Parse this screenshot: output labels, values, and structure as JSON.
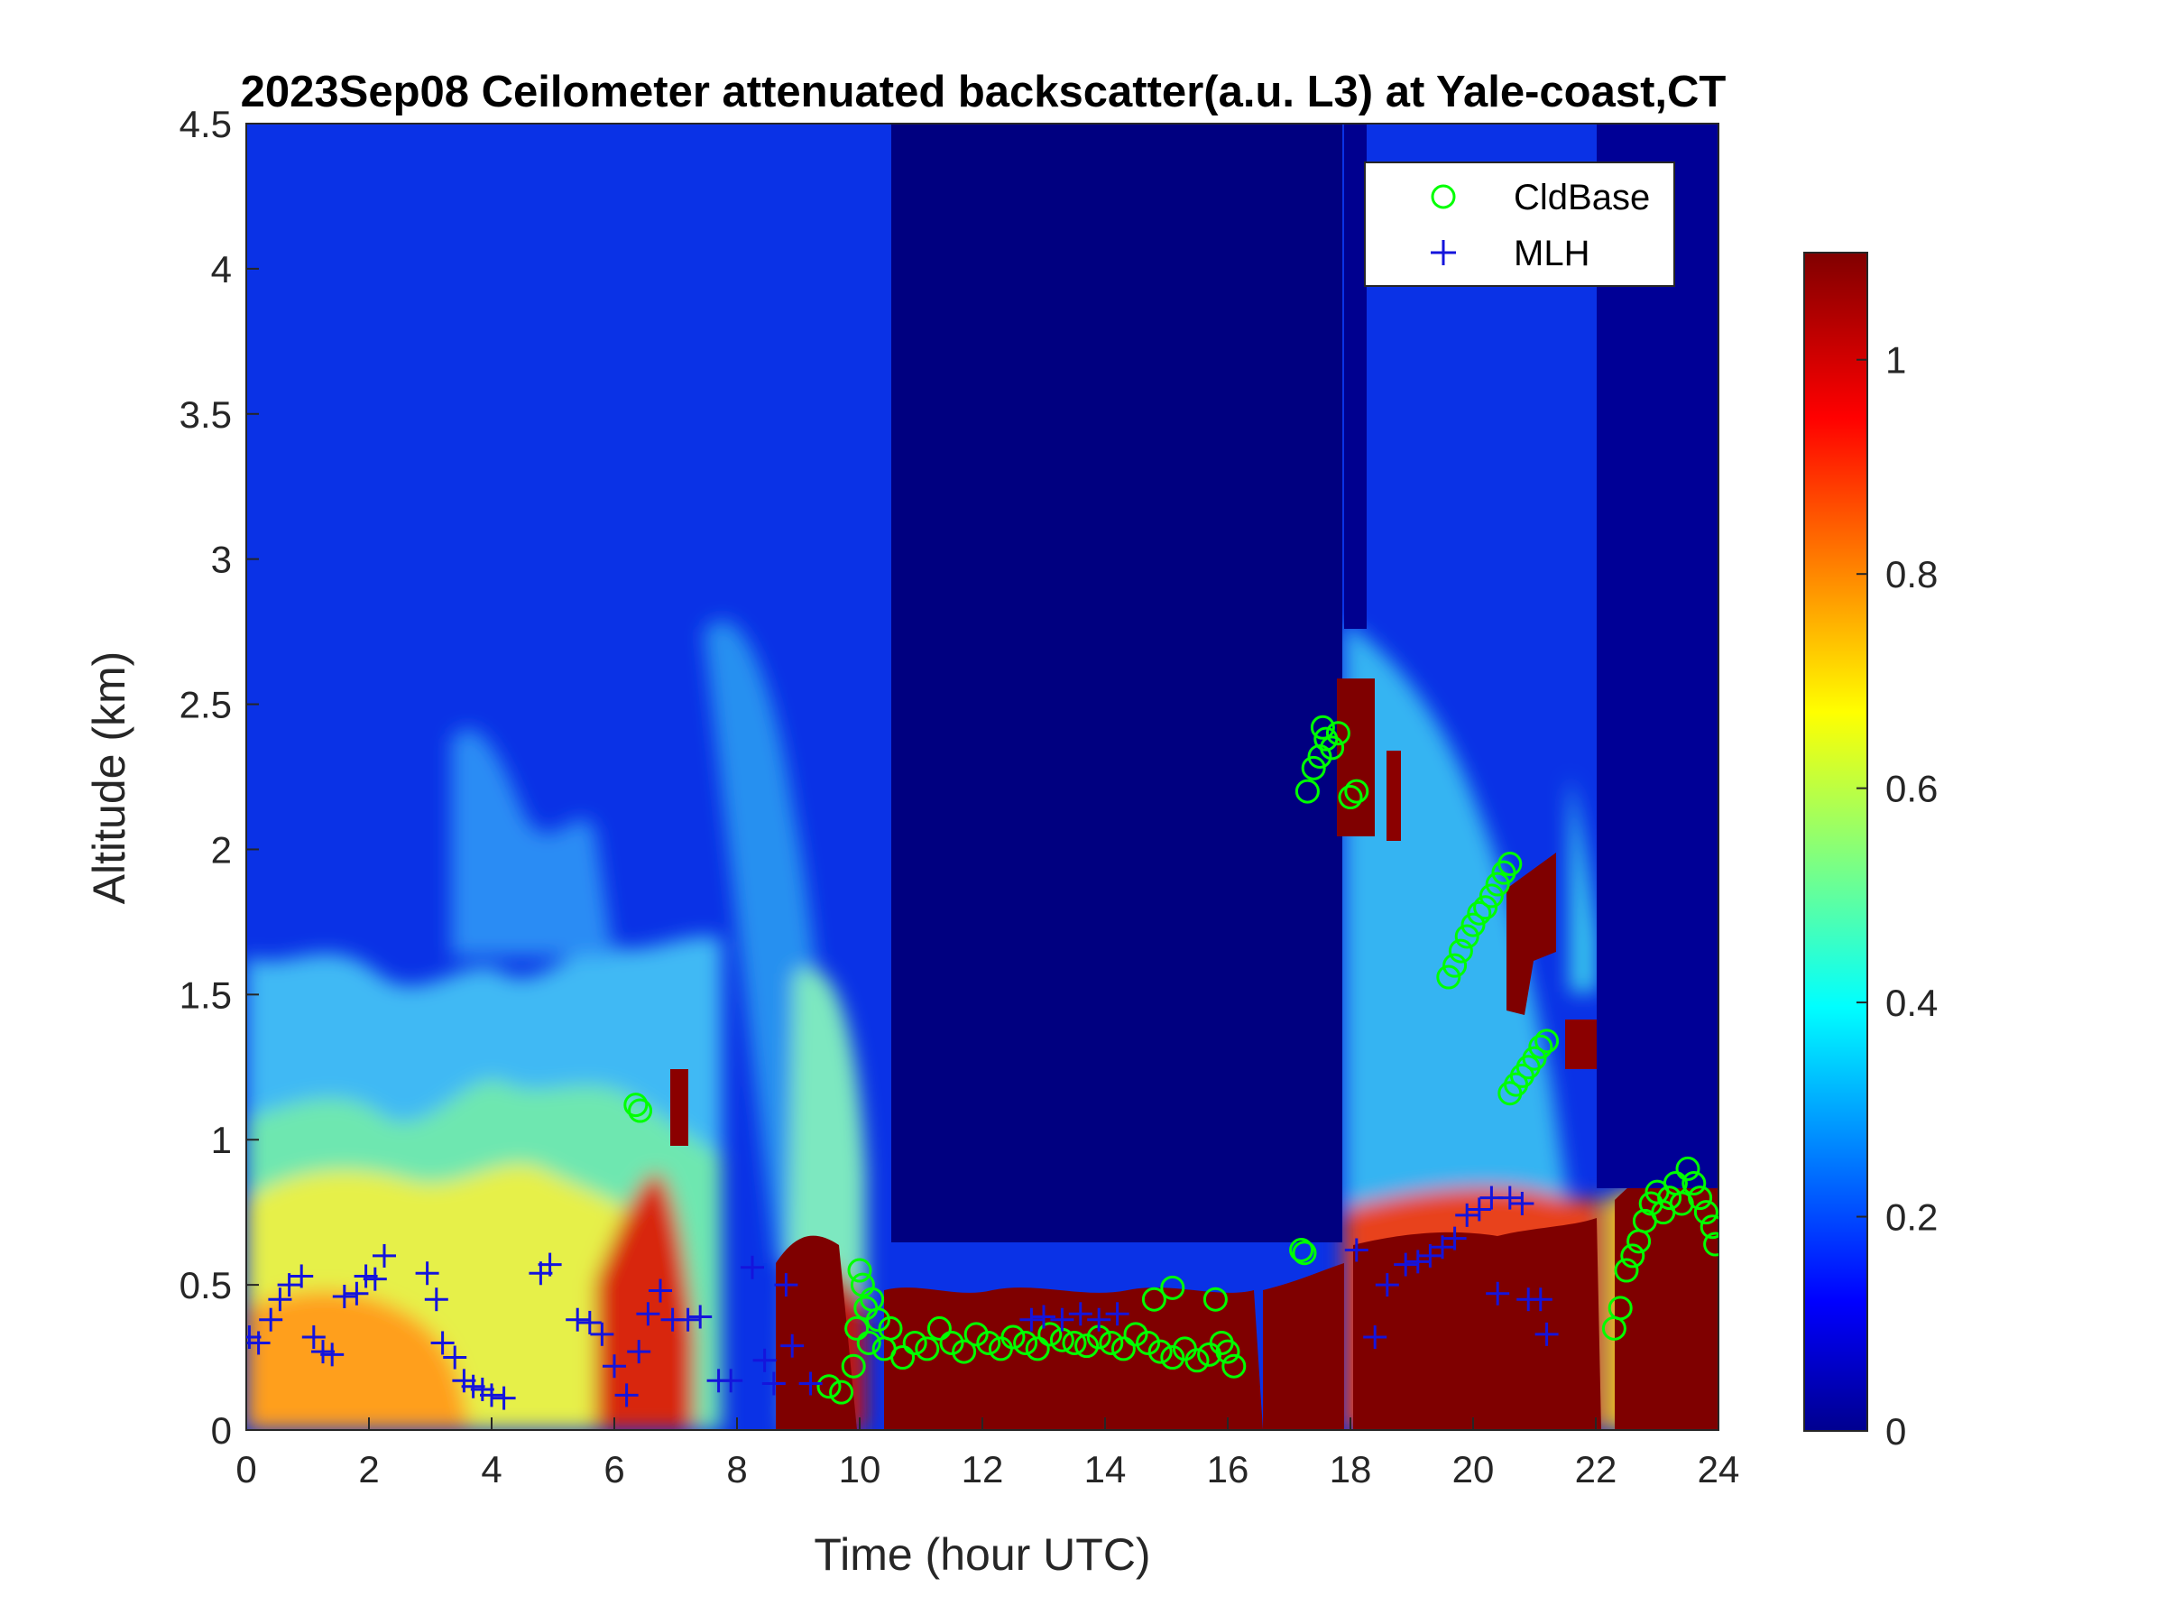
{
  "chart_data": {
    "type": "heatmap",
    "title": "2023Sep08 Ceilometer attenuated backscatter(a.u. L3) at Yale-coast,CT",
    "xlabel": "Time (hour UTC)",
    "ylabel": "Altitude (km)",
    "xlim": [
      0,
      24
    ],
    "ylim": [
      0,
      4.5
    ],
    "xticks": [
      "0",
      "2",
      "4",
      "6",
      "8",
      "10",
      "12",
      "14",
      "16",
      "18",
      "20",
      "22",
      "24"
    ],
    "yticks": [
      "0",
      "0.5",
      "1",
      "1.5",
      "2",
      "2.5",
      "3",
      "3.5",
      "4",
      "4.5"
    ],
    "colorbar": {
      "colormap": "jet",
      "range": [
        0,
        1.1
      ],
      "ticks": [
        "0",
        "0.2",
        "0.4",
        "0.6",
        "0.8",
        "1"
      ]
    },
    "legend": {
      "position": "top-right",
      "entries": [
        "CldBase",
        "MLH"
      ]
    },
    "series": [
      {
        "name": "CldBase",
        "marker": "circle",
        "color": "#00ff00",
        "points": [
          [
            6.35,
            1.12
          ],
          [
            6.42,
            1.1
          ],
          [
            9.5,
            0.15
          ],
          [
            9.7,
            0.13
          ],
          [
            9.9,
            0.22
          ],
          [
            9.95,
            0.35
          ],
          [
            10.0,
            0.55
          ],
          [
            10.05,
            0.5
          ],
          [
            10.1,
            0.42
          ],
          [
            10.15,
            0.3
          ],
          [
            10.2,
            0.45
          ],
          [
            10.3,
            0.38
          ],
          [
            10.4,
            0.28
          ],
          [
            10.5,
            0.35
          ],
          [
            10.7,
            0.25
          ],
          [
            10.9,
            0.3
          ],
          [
            11.1,
            0.28
          ],
          [
            11.3,
            0.35
          ],
          [
            11.5,
            0.3
          ],
          [
            11.7,
            0.27
          ],
          [
            11.9,
            0.33
          ],
          [
            12.1,
            0.3
          ],
          [
            12.3,
            0.28
          ],
          [
            12.5,
            0.32
          ],
          [
            12.7,
            0.3
          ],
          [
            12.9,
            0.28
          ],
          [
            13.1,
            0.33
          ],
          [
            13.3,
            0.31
          ],
          [
            13.5,
            0.3
          ],
          [
            13.7,
            0.29
          ],
          [
            13.9,
            0.32
          ],
          [
            14.1,
            0.3
          ],
          [
            14.3,
            0.28
          ],
          [
            14.5,
            0.33
          ],
          [
            14.7,
            0.3
          ],
          [
            14.9,
            0.27
          ],
          [
            15.1,
            0.25
          ],
          [
            15.3,
            0.28
          ],
          [
            15.5,
            0.24
          ],
          [
            15.7,
            0.26
          ],
          [
            15.8,
            0.45
          ],
          [
            15.9,
            0.3
          ],
          [
            16.0,
            0.27
          ],
          [
            16.1,
            0.22
          ],
          [
            15.1,
            0.49
          ],
          [
            14.8,
            0.45
          ],
          [
            17.2,
            0.62
          ],
          [
            17.25,
            0.61
          ],
          [
            17.3,
            2.2
          ],
          [
            17.4,
            2.28
          ],
          [
            17.5,
            2.32
          ],
          [
            17.55,
            2.42
          ],
          [
            17.6,
            2.38
          ],
          [
            17.7,
            2.35
          ],
          [
            17.8,
            2.4
          ],
          [
            18.0,
            2.18
          ],
          [
            18.1,
            2.2
          ],
          [
            19.6,
            1.56
          ],
          [
            19.7,
            1.6
          ],
          [
            19.8,
            1.65
          ],
          [
            19.9,
            1.7
          ],
          [
            20.0,
            1.74
          ],
          [
            20.1,
            1.78
          ],
          [
            20.2,
            1.8
          ],
          [
            20.3,
            1.84
          ],
          [
            20.4,
            1.88
          ],
          [
            20.5,
            1.92
          ],
          [
            20.6,
            1.95
          ],
          [
            20.6,
            1.16
          ],
          [
            20.7,
            1.19
          ],
          [
            20.8,
            1.22
          ],
          [
            20.9,
            1.25
          ],
          [
            21.0,
            1.28
          ],
          [
            21.1,
            1.32
          ],
          [
            21.2,
            1.34
          ],
          [
            22.3,
            0.35
          ],
          [
            22.4,
            0.42
          ],
          [
            22.5,
            0.55
          ],
          [
            22.6,
            0.6
          ],
          [
            22.7,
            0.65
          ],
          [
            22.8,
            0.72
          ],
          [
            22.9,
            0.78
          ],
          [
            23.0,
            0.82
          ],
          [
            23.1,
            0.75
          ],
          [
            23.2,
            0.8
          ],
          [
            23.3,
            0.85
          ],
          [
            23.4,
            0.78
          ],
          [
            23.5,
            0.9
          ],
          [
            23.6,
            0.85
          ],
          [
            23.7,
            0.8
          ],
          [
            23.8,
            0.75
          ],
          [
            23.9,
            0.7
          ],
          [
            23.95,
            0.64
          ]
        ]
      },
      {
        "name": "MLH",
        "marker": "plus",
        "color": "#1414dc",
        "points": [
          [
            0.05,
            0.32
          ],
          [
            0.2,
            0.3
          ],
          [
            0.4,
            0.38
          ],
          [
            0.55,
            0.45
          ],
          [
            0.7,
            0.5
          ],
          [
            0.9,
            0.53
          ],
          [
            1.1,
            0.32
          ],
          [
            1.25,
            0.27
          ],
          [
            1.4,
            0.26
          ],
          [
            1.6,
            0.46
          ],
          [
            1.8,
            0.47
          ],
          [
            1.95,
            0.53
          ],
          [
            2.1,
            0.52
          ],
          [
            2.25,
            0.6
          ],
          [
            2.95,
            0.54
          ],
          [
            3.1,
            0.45
          ],
          [
            3.2,
            0.3
          ],
          [
            3.4,
            0.25
          ],
          [
            3.55,
            0.17
          ],
          [
            3.7,
            0.15
          ],
          [
            3.85,
            0.14
          ],
          [
            4.0,
            0.12
          ],
          [
            4.2,
            0.11
          ],
          [
            4.8,
            0.54
          ],
          [
            4.95,
            0.57
          ],
          [
            5.4,
            0.38
          ],
          [
            5.6,
            0.37
          ],
          [
            5.8,
            0.33
          ],
          [
            6.0,
            0.22
          ],
          [
            6.2,
            0.12
          ],
          [
            6.4,
            0.27
          ],
          [
            6.55,
            0.4
          ],
          [
            6.75,
            0.48
          ],
          [
            6.95,
            0.38
          ],
          [
            7.2,
            0.38
          ],
          [
            7.4,
            0.39
          ],
          [
            7.7,
            0.17
          ],
          [
            7.9,
            0.17
          ],
          [
            8.25,
            0.56
          ],
          [
            8.45,
            0.24
          ],
          [
            8.6,
            0.16
          ],
          [
            8.8,
            0.5
          ],
          [
            8.9,
            0.29
          ],
          [
            9.2,
            0.16
          ],
          [
            12.8,
            0.38
          ],
          [
            13.0,
            0.39
          ],
          [
            13.3,
            0.38
          ],
          [
            13.6,
            0.4
          ],
          [
            13.9,
            0.38
          ],
          [
            14.2,
            0.4
          ],
          [
            18.1,
            0.62
          ],
          [
            18.4,
            0.32
          ],
          [
            18.6,
            0.5
          ],
          [
            18.9,
            0.57
          ],
          [
            19.1,
            0.58
          ],
          [
            19.3,
            0.6
          ],
          [
            19.5,
            0.63
          ],
          [
            19.7,
            0.66
          ],
          [
            19.9,
            0.74
          ],
          [
            20.1,
            0.76
          ],
          [
            20.3,
            0.8
          ],
          [
            20.6,
            0.8
          ],
          [
            20.8,
            0.78
          ],
          [
            20.4,
            0.47
          ],
          [
            20.9,
            0.45
          ],
          [
            21.1,
            0.45
          ],
          [
            21.2,
            0.33
          ]
        ]
      }
    ]
  }
}
